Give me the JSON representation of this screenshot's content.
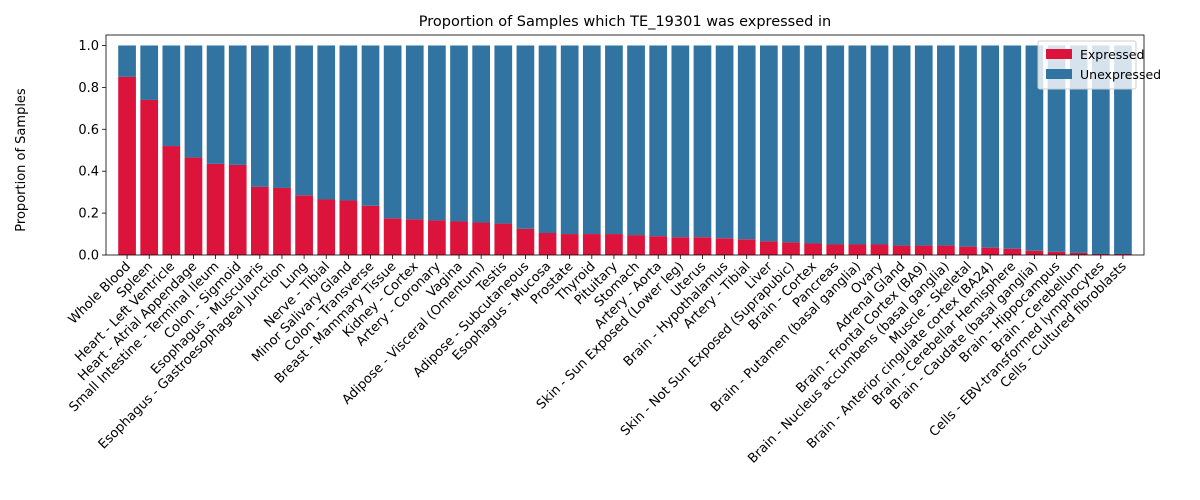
{
  "chart_data": {
    "type": "bar",
    "stacked": true,
    "title": "Proportion of Samples which TE_19301 was expressed in",
    "xlabel": "",
    "ylabel": "Proportion of Samples",
    "ylim": [
      0,
      1.05
    ],
    "yticks": [
      0.0,
      0.2,
      0.4,
      0.6,
      0.8,
      1.0
    ],
    "ytick_labels": [
      "0.0",
      "0.2",
      "0.4",
      "0.6",
      "0.8",
      "1.0"
    ],
    "legend_position": "top-right",
    "categories": [
      "Whole Blood",
      "Spleen",
      "Heart - Left Ventricle",
      "Heart - Atrial Appendage",
      "Small Intestine - Terminal Ileum",
      "Colon - Sigmoid",
      "Esophagus - Muscularis",
      "Esophagus - Gastroesophageal Junction",
      "Lung",
      "Nerve - Tibial",
      "Minor Salivary Gland",
      "Colon - Transverse",
      "Breast - Mammary Tissue",
      "Kidney - Cortex",
      "Artery - Coronary",
      "Vagina",
      "Adipose - Visceral (Omentum)",
      "Testis",
      "Adipose - Subcutaneous",
      "Esophagus - Mucosa",
      "Prostate",
      "Thyroid",
      "Pituitary",
      "Stomach",
      "Artery - Aorta",
      "Skin - Sun Exposed (Lower leg)",
      "Uterus",
      "Brain - Hypothalamus",
      "Artery - Tibial",
      "Liver",
      "Skin - Not Sun Exposed (Suprapubic)",
      "Brain - Cortex",
      "Pancreas",
      "Brain - Putamen (basal ganglia)",
      "Ovary",
      "Adrenal Gland",
      "Brain - Frontal Cortex (BA9)",
      "Brain - Nucleus accumbens (basal ganglia)",
      "Muscle - Skeletal",
      "Brain - Anterior cingulate cortex (BA24)",
      "Brain - Cerebellar Hemisphere",
      "Brain - Caudate (basal ganglia)",
      "Brain - Hippocampus",
      "Brain - Cerebellum",
      "Cells - EBV-transformed lymphocytes",
      "Cells - Cultured fibroblasts"
    ],
    "series": [
      {
        "name": "Expressed",
        "color": "#dc143c",
        "values": [
          0.85,
          0.74,
          0.52,
          0.465,
          0.435,
          0.43,
          0.325,
          0.32,
          0.285,
          0.265,
          0.26,
          0.235,
          0.175,
          0.17,
          0.165,
          0.16,
          0.155,
          0.15,
          0.125,
          0.105,
          0.1,
          0.1,
          0.1,
          0.095,
          0.09,
          0.085,
          0.085,
          0.08,
          0.075,
          0.065,
          0.06,
          0.055,
          0.05,
          0.05,
          0.05,
          0.045,
          0.045,
          0.045,
          0.04,
          0.035,
          0.03,
          0.02,
          0.015,
          0.01,
          0.005,
          0.005
        ]
      },
      {
        "name": "Unexpressed",
        "color": "#3274a1",
        "values": [
          0.15,
          0.26,
          0.48,
          0.535,
          0.565,
          0.57,
          0.675,
          0.68,
          0.715,
          0.735,
          0.74,
          0.765,
          0.825,
          0.83,
          0.835,
          0.84,
          0.845,
          0.85,
          0.875,
          0.895,
          0.9,
          0.9,
          0.9,
          0.905,
          0.91,
          0.915,
          0.915,
          0.92,
          0.925,
          0.935,
          0.94,
          0.945,
          0.95,
          0.95,
          0.95,
          0.955,
          0.955,
          0.955,
          0.96,
          0.965,
          0.97,
          0.98,
          0.985,
          0.99,
          0.995,
          0.995
        ]
      }
    ]
  }
}
